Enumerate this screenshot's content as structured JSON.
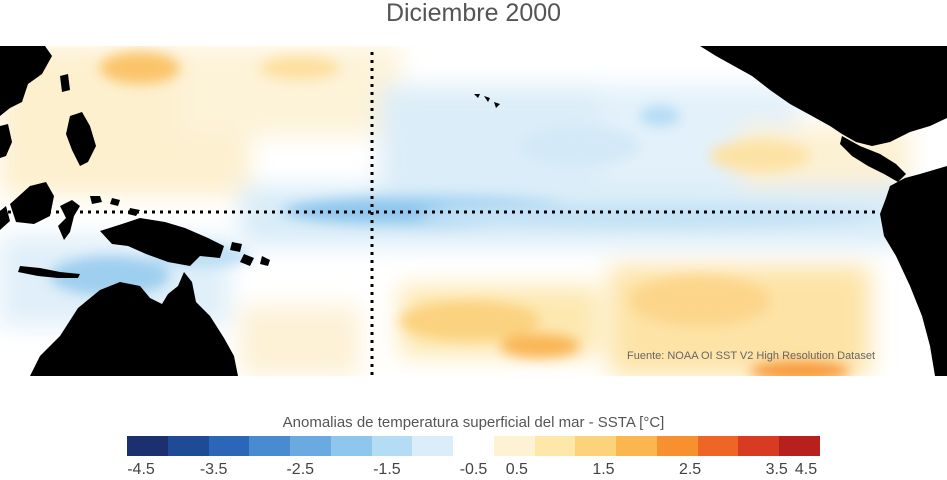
{
  "title": "Diciembre 2000",
  "source": "Fuente: NOAA OI SST V2 High Resolution Dataset",
  "colorbar": {
    "label": "Anomalias de temperatura superficial del mar - SSTA  [°C]",
    "colors": [
      "#1c2f6e",
      "#1f4a96",
      "#2b66b8",
      "#4a8ad0",
      "#6aaae0",
      "#8ec6ee",
      "#b4dcf5",
      "#dbedf8",
      "#ffffff",
      "#fdf3d4",
      "#fde7a9",
      "#fcd27a",
      "#fbb64f",
      "#f7902f",
      "#ee6526",
      "#d83a22",
      "#b8201d"
    ],
    "ticks": [
      "-4.5",
      "-3.5",
      "-2.5",
      "-1.5",
      "-0.5",
      "0.5",
      "1.5",
      "2.5",
      "3.5",
      "4.5"
    ]
  }
}
